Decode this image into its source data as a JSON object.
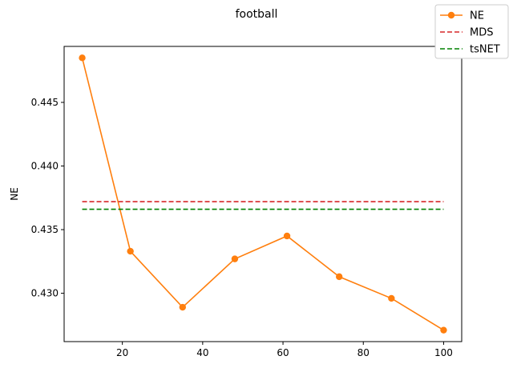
{
  "chart_data": {
    "type": "line",
    "title": "football",
    "xlabel": "",
    "ylabel": "NE",
    "xlim": [
      5.5,
      104.5
    ],
    "ylim": [
      0.4262,
      0.4494
    ],
    "xticks": [
      20,
      40,
      60,
      80,
      100
    ],
    "yticks": [
      0.43,
      0.435,
      0.44,
      0.445
    ],
    "ytick_labels": [
      "0.430",
      "0.435",
      "0.440",
      "0.445"
    ],
    "grid": false,
    "legend_placement": "top-right (outside plot)",
    "series": [
      {
        "name": "NE",
        "style": "solid line with circle markers",
        "color": "#ff7f0e",
        "x": [
          10,
          22,
          35,
          48,
          61,
          74,
          87,
          100
        ],
        "y": [
          0.4485,
          0.4333,
          0.4289,
          0.4327,
          0.4345,
          0.4313,
          0.4296,
          0.4271
        ]
      },
      {
        "name": "MDS",
        "style": "dashed",
        "color": "#d62728",
        "x": [
          10,
          100
        ],
        "y": [
          0.4372,
          0.4372
        ]
      },
      {
        "name": "tsNET",
        "style": "dashed",
        "color": "#008000",
        "x": [
          10,
          100
        ],
        "y": [
          0.4366,
          0.4366
        ]
      }
    ]
  }
}
